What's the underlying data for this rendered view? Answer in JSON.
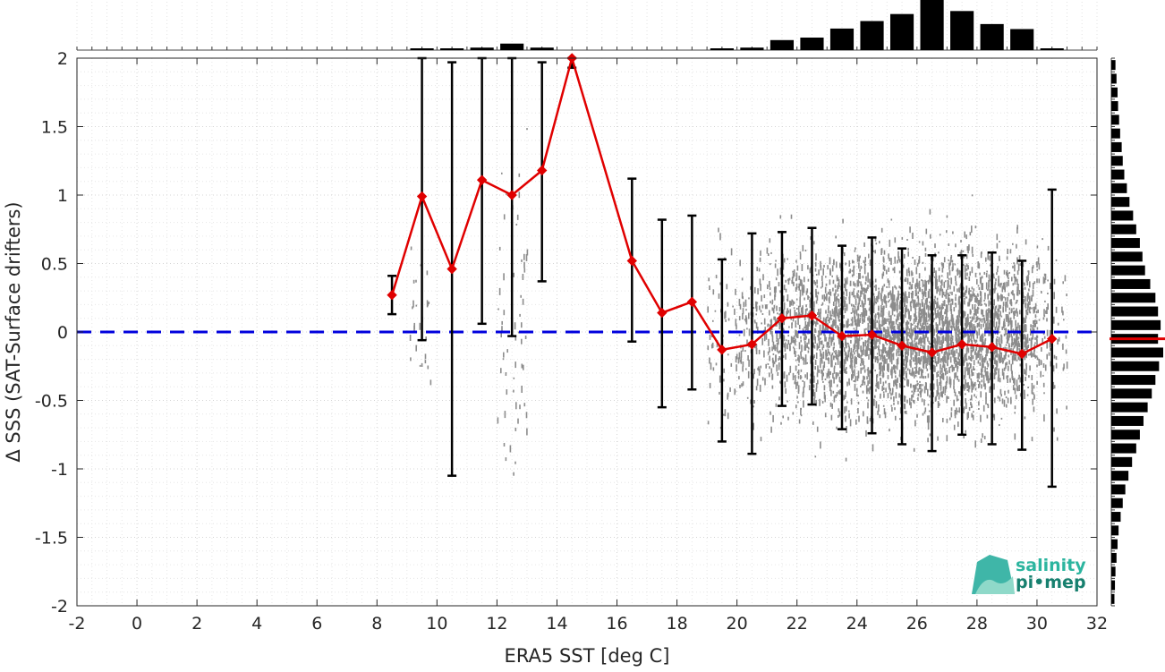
{
  "chart_data": {
    "type": "scatter",
    "title": "",
    "xlabel": "ERA5 SST [deg C]",
    "ylabel": "Δ SSS (SAT-Surface drifters)",
    "xlim": [
      -2,
      32
    ],
    "ylim": [
      -2,
      2
    ],
    "xticks": [
      -2,
      0,
      2,
      4,
      6,
      8,
      10,
      12,
      14,
      16,
      18,
      20,
      22,
      24,
      26,
      28,
      30,
      32
    ],
    "yticks": [
      -2,
      -1.5,
      -1,
      -0.5,
      0,
      0.5,
      1,
      1.5,
      2
    ],
    "grid": true,
    "reference_line": {
      "y": 0,
      "style": "dashed",
      "color": "#0000dd"
    },
    "colors": {
      "mean_line": "#e00000",
      "error_bars": "#000000",
      "scatter": "#8c8c8c",
      "histogram": "#000000",
      "median_marker": "#e00000"
    },
    "series": [
      {
        "type": "line-with-errorbars",
        "x": [
          8.5,
          9.5,
          10.5,
          11.5,
          12.5,
          13.5,
          14.5,
          16.5,
          17.5,
          18.5,
          19.5,
          20.5,
          21.5,
          22.5,
          23.5,
          24.5,
          25.5,
          26.5,
          27.5,
          28.5,
          29.5,
          30.5
        ],
        "mean": [
          0.27,
          0.99,
          0.46,
          1.11,
          1.0,
          1.18,
          2.0,
          0.52,
          0.14,
          0.22,
          -0.13,
          -0.09,
          0.1,
          0.12,
          -0.03,
          -0.02,
          -0.1,
          -0.15,
          -0.09,
          -0.11,
          -0.16,
          -0.05
        ],
        "lower": [
          0.13,
          -0.06,
          -1.05,
          0.06,
          -0.03,
          0.37,
          1.93,
          -0.07,
          -0.55,
          -0.42,
          -0.8,
          -0.89,
          -0.54,
          -0.53,
          -0.71,
          -0.74,
          -0.82,
          -0.87,
          -0.75,
          -0.82,
          -0.86,
          -1.13
        ],
        "upper": [
          0.41,
          2.0,
          1.97,
          2.0,
          2.0,
          1.97,
          2.0,
          1.12,
          0.82,
          0.85,
          0.53,
          0.72,
          0.73,
          0.76,
          0.63,
          0.69,
          0.61,
          0.56,
          0.56,
          0.58,
          0.52,
          1.04
        ]
      }
    ],
    "top_histogram": {
      "bin_centers": [
        9.5,
        10.5,
        11.5,
        12.5,
        13.5,
        19.5,
        20.5,
        21.5,
        22.5,
        23.5,
        24.5,
        25.5,
        26.5,
        27.5,
        28.5,
        29.5,
        30.5
      ],
      "relative_counts": [
        0.03,
        0.03,
        0.05,
        0.13,
        0.05,
        0.03,
        0.05,
        0.2,
        0.25,
        0.43,
        0.58,
        0.72,
        1.0,
        0.78,
        0.52,
        0.42,
        0.03
      ]
    },
    "right_histogram": {
      "y_centers": [
        1.95,
        1.85,
        1.75,
        1.65,
        1.55,
        1.45,
        1.35,
        1.25,
        1.15,
        1.05,
        0.95,
        0.85,
        0.75,
        0.65,
        0.55,
        0.45,
        0.35,
        0.25,
        0.15,
        0.05,
        -0.05,
        -0.15,
        -0.25,
        -0.35,
        -0.45,
        -0.55,
        -0.65,
        -0.75,
        -0.85,
        -0.95,
        -1.05,
        -1.15,
        -1.25,
        -1.35,
        -1.45,
        -1.55,
        -1.65,
        -1.75,
        -1.85,
        -1.95
      ],
      "relative_counts": [
        0.08,
        0.1,
        0.12,
        0.13,
        0.15,
        0.17,
        0.2,
        0.22,
        0.25,
        0.3,
        0.35,
        0.42,
        0.48,
        0.55,
        0.6,
        0.65,
        0.75,
        0.85,
        0.9,
        0.95,
        0.9,
        1.0,
        0.92,
        0.85,
        0.78,
        0.7,
        0.62,
        0.55,
        0.48,
        0.4,
        0.33,
        0.27,
        0.22,
        0.18,
        0.14,
        0.12,
        0.1,
        0.08,
        0.07,
        0.06
      ],
      "median_y": -0.05
    },
    "scatter_note": "dense grey cloud of individual collocations, concentrated at SST 20-31 deg C"
  },
  "logo": {
    "line1": "salinity",
    "line2": "pi•mep"
  }
}
